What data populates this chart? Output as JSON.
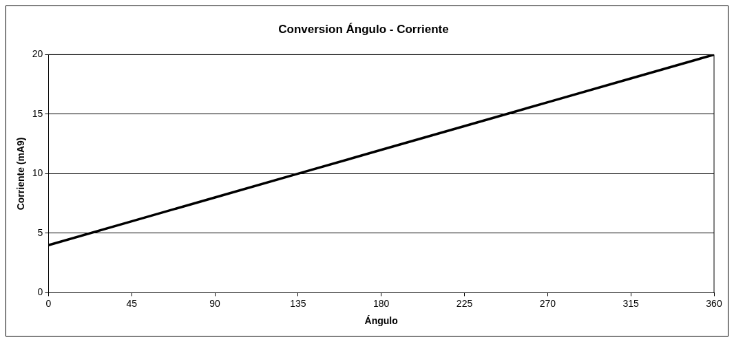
{
  "chart_data": {
    "type": "line",
    "title": "Conversion Ángulo - Corriente",
    "xlabel": "Ángulo",
    "ylabel": "Corriente (mA9)",
    "x": [
      0,
      45,
      90,
      135,
      180,
      225,
      270,
      315,
      360
    ],
    "series": [
      {
        "color": "#000000",
        "values": [
          4,
          6,
          8,
          10,
          12,
          14,
          16,
          18,
          20
        ]
      }
    ],
    "xlim": [
      0,
      360
    ],
    "xticks": [
      0,
      45,
      90,
      135,
      180,
      225,
      270,
      315,
      360
    ],
    "ylim": [
      0,
      20
    ],
    "yticks": [
      0,
      5,
      10,
      15,
      20
    ],
    "grid": "y",
    "legend": false,
    "marker": "none",
    "line_style": "solid"
  }
}
